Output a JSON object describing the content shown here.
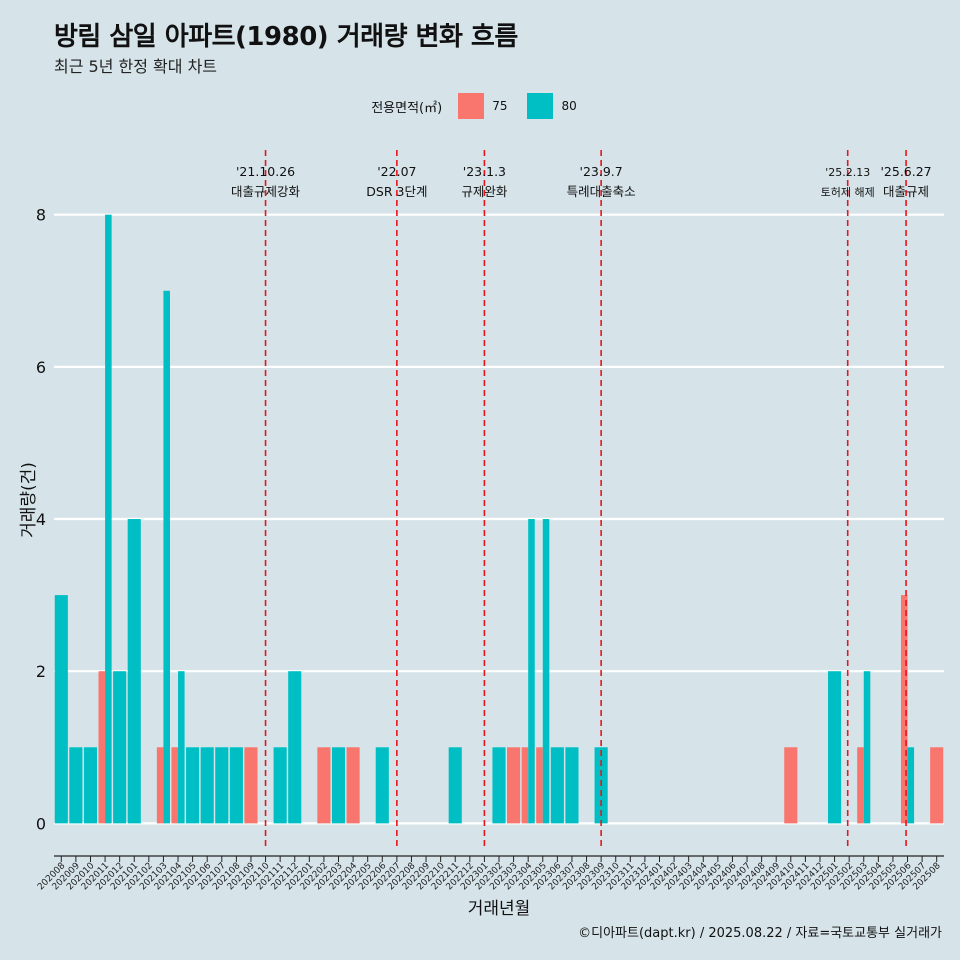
{
  "header": {
    "title": "방림 삼일 아파트(1980) 거래량 변화 흐름",
    "subtitle": "최근 5년 한정 확대 차트"
  },
  "legend": {
    "title": "전용면적(㎡)",
    "items": [
      {
        "label": "75",
        "color": "#f8766d"
      },
      {
        "label": "80",
        "color": "#00bfc4"
      }
    ]
  },
  "caption": "©디아파트(dapt.kr) / 2025.08.22 / 자료=국토교통부 실거래가",
  "chart_data": {
    "type": "bar",
    "xlabel": "거래년월",
    "ylabel": "거래량(건)",
    "ylim": [
      -0.35,
      8.85
    ],
    "yticks": [
      0,
      2,
      4,
      6,
      8
    ],
    "grid": true,
    "legend_placement": "top",
    "categories": [
      "202008",
      "202009",
      "202010",
      "202011",
      "202012",
      "202101",
      "202102",
      "202103",
      "202104",
      "202105",
      "202106",
      "202107",
      "202108",
      "202109",
      "202110",
      "202111",
      "202112",
      "202201",
      "202202",
      "202203",
      "202204",
      "202205",
      "202206",
      "202207",
      "202208",
      "202209",
      "202210",
      "202211",
      "202212",
      "202301",
      "202302",
      "202303",
      "202304",
      "202305",
      "202306",
      "202307",
      "202308",
      "202309",
      "202310",
      "202311",
      "202312",
      "202401",
      "202402",
      "202403",
      "202404",
      "202405",
      "202406",
      "202407",
      "202408",
      "202409",
      "202410",
      "202411",
      "202412",
      "202501",
      "202502",
      "202503",
      "202504",
      "202505",
      "202506",
      "202507",
      "202508"
    ],
    "series": [
      {
        "name": "75",
        "color": "#f8766d",
        "values": [
          0,
          0,
          0,
          2,
          0,
          0,
          0,
          1,
          1,
          0,
          0,
          0,
          0,
          1,
          0,
          0,
          0,
          0,
          1,
          0,
          1,
          0,
          0,
          0,
          0,
          0,
          0,
          0,
          0,
          0,
          0,
          1,
          1,
          1,
          0,
          0,
          0,
          0,
          0,
          0,
          0,
          0,
          0,
          0,
          0,
          0,
          0,
          0,
          0,
          0,
          1,
          0,
          0,
          0,
          0,
          1,
          0,
          0,
          3,
          0,
          1
        ]
      },
      {
        "name": "80",
        "color": "#00bfc4",
        "values": [
          3,
          1,
          1,
          8,
          2,
          4,
          0,
          7,
          2,
          1,
          1,
          1,
          1,
          0,
          0,
          1,
          2,
          0,
          0,
          1,
          0,
          0,
          1,
          0,
          0,
          0,
          0,
          1,
          0,
          0,
          1,
          0,
          4,
          4,
          1,
          1,
          0,
          1,
          0,
          0,
          0,
          0,
          0,
          0,
          0,
          0,
          0,
          0,
          0,
          0,
          0,
          0,
          0,
          2,
          0,
          2,
          0,
          0,
          1,
          0,
          0
        ]
      }
    ],
    "annotations": [
      {
        "date": "'21.10.26",
        "label": "대출규제강화",
        "x": 14.5
      },
      {
        "date": "'22.07",
        "label": "DSR 3단계",
        "x": 23.5
      },
      {
        "date": "'23.1.3",
        "label": "규제완화",
        "x": 29.5
      },
      {
        "date": "'23.9.7",
        "label": "특례대출축소",
        "x": 37.5
      },
      {
        "date": "'25.2.13",
        "label": "토허제 해제",
        "x": 54.4
      },
      {
        "date": "'25.6.27",
        "label": "대출규제",
        "x": 58.4
      }
    ]
  }
}
